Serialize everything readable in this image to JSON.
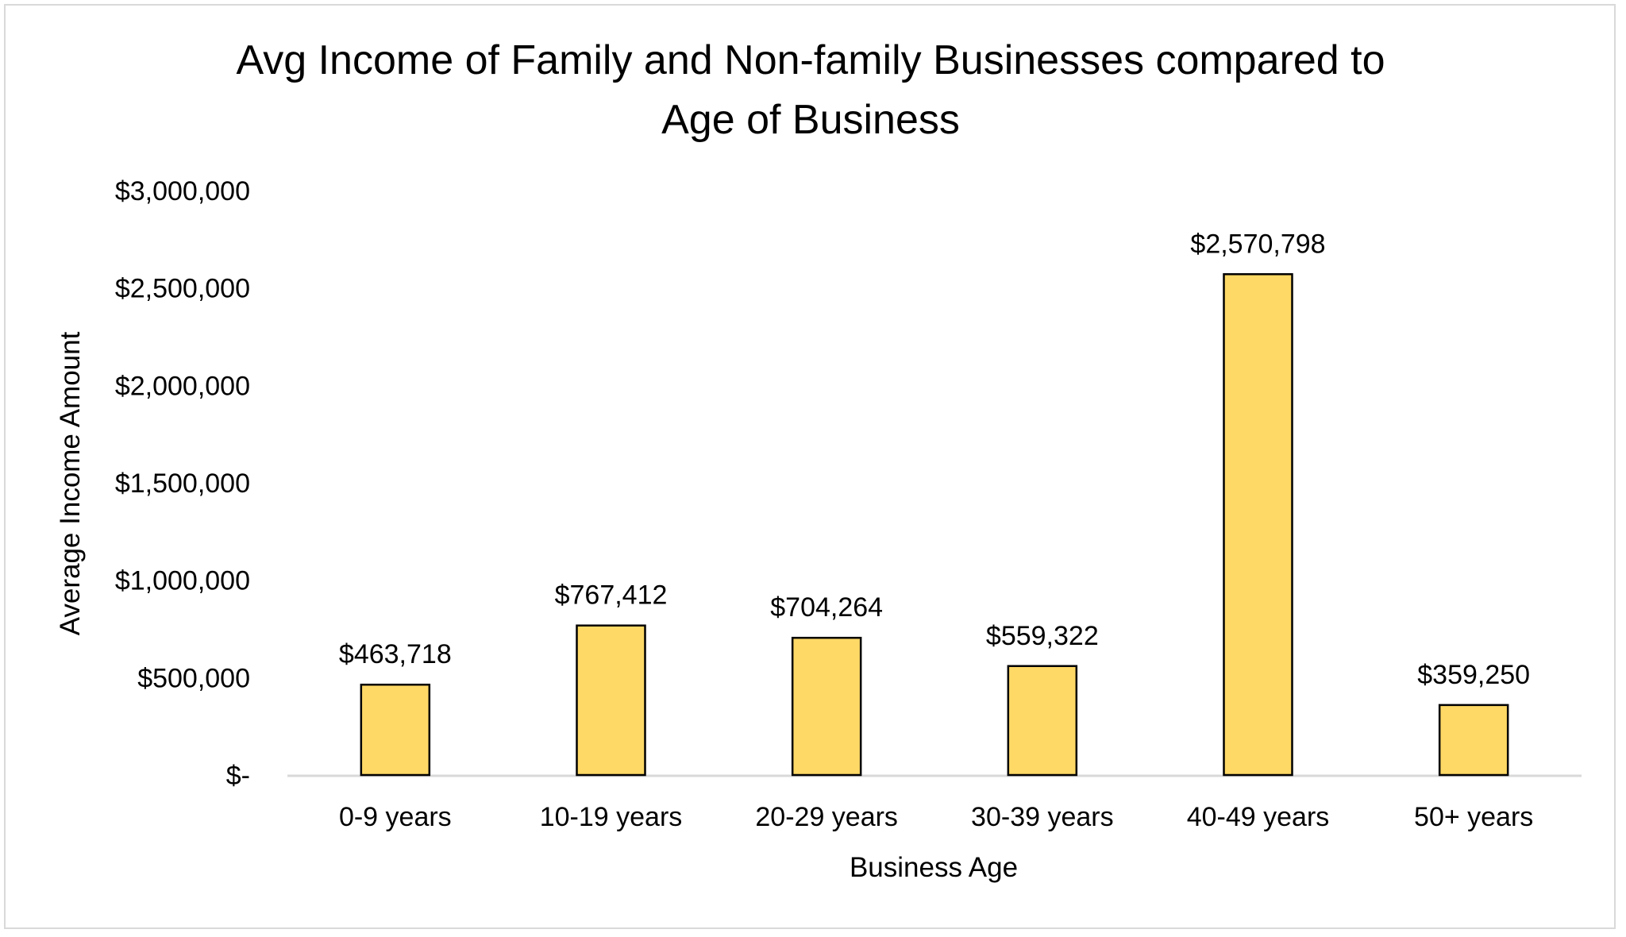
{
  "chart_data": {
    "type": "bar",
    "title": "Avg Income of Family and Non-family Businesses compared to Age of Business",
    "title_lines": [
      "Avg Income of Family and Non-family Businesses compared to",
      "Age of Business"
    ],
    "xlabel": "Business Age",
    "ylabel": "Average Income Amount",
    "categories": [
      "0-9 years",
      "10-19 years",
      "20-29 years",
      "30-39 years",
      "40-49 years",
      "50+ years"
    ],
    "values": [
      463718,
      767412,
      704264,
      559322,
      2570798,
      359250
    ],
    "data_labels": [
      "$463,718",
      "$767,412",
      "$704,264",
      "$559,322",
      "$2,570,798",
      "$359,250"
    ],
    "ylim": [
      0,
      3000000
    ],
    "yticks": [
      0,
      500000,
      1000000,
      1500000,
      2000000,
      2500000,
      3000000
    ],
    "ytick_labels": [
      "$-",
      "$500,000",
      "$1,000,000",
      "$1,500,000",
      "$2,000,000",
      "$2,500,000",
      "$3,000,000"
    ],
    "grid": false,
    "legend": "none",
    "bar_color": "#FFD966",
    "bar_edge_color": "#000000",
    "axis_color": "#D9D9D9"
  }
}
